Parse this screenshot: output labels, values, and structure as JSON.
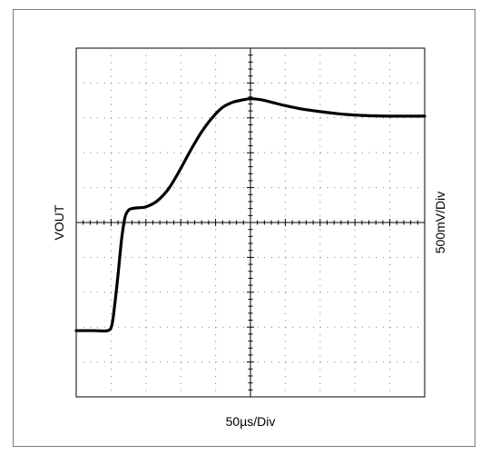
{
  "chart_data": {
    "type": "line",
    "title": "",
    "xlabel": "50µs/Div",
    "ylabel": "VOUT",
    "ylabel_right": "500mV/Div",
    "x_divisions": 10,
    "y_divisions": 10,
    "xlim": [
      0,
      10
    ],
    "ylim": [
      -5,
      5
    ],
    "grid": true,
    "legend": "none",
    "trace_color": "#000000",
    "series": [
      {
        "x": [
          0,
          0.5,
          0.9,
          1.02,
          1.1,
          1.2,
          1.3,
          1.4,
          1.5,
          1.6,
          1.75,
          2.0,
          2.3,
          2.6,
          2.8,
          3.0,
          3.3,
          3.6,
          3.9,
          4.2,
          4.5,
          4.8,
          5.0,
          5.3,
          5.6,
          6.0,
          6.5,
          7.0,
          7.5,
          8.0,
          8.5,
          9.0,
          9.5,
          10.0
        ],
        "y": [
          -3.1,
          -3.1,
          -3.1,
          -2.95,
          -2.4,
          -1.5,
          -0.5,
          0.15,
          0.35,
          0.4,
          0.42,
          0.45,
          0.6,
          0.9,
          1.2,
          1.55,
          2.1,
          2.6,
          3.0,
          3.3,
          3.45,
          3.52,
          3.55,
          3.52,
          3.45,
          3.35,
          3.25,
          3.18,
          3.12,
          3.08,
          3.06,
          3.05,
          3.05,
          3.05
        ]
      }
    ]
  }
}
